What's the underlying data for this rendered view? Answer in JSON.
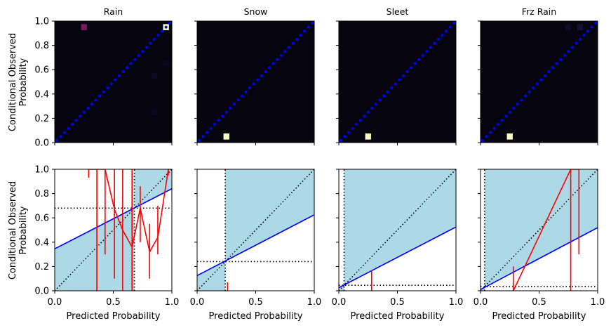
{
  "figure": {
    "xlabel": "Predicted Probability",
    "ylabel_line1": "Conditional Observed",
    "ylabel_line2": "Probability",
    "tick_labels": [
      "0.0",
      "0.2",
      "0.4",
      "0.6",
      "0.8",
      "1.0"
    ],
    "x_tick_labels_bottom": [
      "0.0",
      "0.5",
      "1.0"
    ],
    "colors": {
      "heatmap_background": "#05040f",
      "diagonal_points": "#0000ff",
      "skill_region": "#add8e6",
      "regression_line": "#0000ff",
      "reliability_curve": "#ff0000",
      "reference_lines": "#000000"
    }
  },
  "chart_data": [
    {
      "type": "heatmap",
      "panel": "top",
      "title": "Rain",
      "xlim": [
        0,
        1
      ],
      "ylim": [
        0,
        1
      ],
      "grid_bins": 20,
      "diagonal_points": "x = y",
      "cells": [
        {
          "x": 0.25,
          "y": 0.95,
          "value": 0.45,
          "color": "#7a1a62"
        },
        {
          "x": 0.95,
          "y": 0.95,
          "value": 1.0,
          "color": "#fcfdbf"
        },
        {
          "x": 0.85,
          "y": 0.55,
          "value": 0.03,
          "color": "#0c0a24"
        },
        {
          "x": 0.95,
          "y": 0.65,
          "value": 0.02,
          "color": "#0a081c"
        },
        {
          "x": 0.85,
          "y": 0.25,
          "value": 0.02,
          "color": "#0a081c"
        }
      ]
    },
    {
      "type": "heatmap",
      "panel": "top",
      "title": "Snow",
      "xlim": [
        0,
        1
      ],
      "ylim": [
        0,
        1
      ],
      "grid_bins": 20,
      "diagonal_points": "x = y",
      "cells": [
        {
          "x": 0.25,
          "y": 0.05,
          "value": 1.0,
          "color": "#fcfdbf"
        }
      ]
    },
    {
      "type": "heatmap",
      "panel": "top",
      "title": "Sleet",
      "xlim": [
        0,
        1
      ],
      "ylim": [
        0,
        1
      ],
      "grid_bins": 20,
      "diagonal_points": "x = y",
      "cells": [
        {
          "x": 0.25,
          "y": 0.05,
          "value": 1.0,
          "color": "#fcfdbf"
        }
      ]
    },
    {
      "type": "heatmap",
      "panel": "top",
      "title": "Frz Rain",
      "xlim": [
        0,
        1
      ],
      "ylim": [
        0,
        1
      ],
      "grid_bins": 20,
      "diagonal_points": "x = y",
      "cells": [
        {
          "x": 0.25,
          "y": 0.05,
          "value": 1.0,
          "color": "#fcfdbf"
        },
        {
          "x": 0.85,
          "y": 0.95,
          "value": 0.05,
          "color": "#1a1035"
        },
        {
          "x": 0.75,
          "y": 0.95,
          "value": 0.02,
          "color": "#0f0b26"
        }
      ]
    },
    {
      "type": "line",
      "panel": "bottom",
      "xlabel": "Predicted Probability",
      "xlim": [
        0,
        1
      ],
      "ylim": [
        0,
        1
      ],
      "climatology": 0.68,
      "regression": {
        "intercept": 0.345,
        "slope": 0.495
      },
      "reliability": [
        {
          "x": 0.29,
          "y": 1.0,
          "err": [
            0.93,
            1.0
          ]
        },
        {
          "x": 0.36,
          "y": 1.0,
          "err": [
            0.0,
            1.0
          ]
        },
        {
          "x": 0.43,
          "y": 1.0,
          "err": [
            0.3,
            1.0
          ]
        },
        {
          "x": 0.51,
          "y": 0.67,
          "err": [
            0.1,
            1.0
          ]
        },
        {
          "x": 0.58,
          "y": 0.5,
          "err": [
            0.0,
            1.0
          ]
        },
        {
          "x": 0.66,
          "y": 0.36,
          "err": [
            0.0,
            1.0
          ]
        },
        {
          "x": 0.73,
          "y": 0.68,
          "err": [
            0.4,
            0.86
          ]
        },
        {
          "x": 0.81,
          "y": 0.32,
          "err": [
            0.1,
            0.55
          ]
        },
        {
          "x": 0.88,
          "y": 0.44,
          "err": [
            0.3,
            0.7
          ]
        },
        {
          "x": 0.97,
          "y": 1.0,
          "err": [
            0.95,
            1.0
          ]
        }
      ]
    },
    {
      "type": "line",
      "panel": "bottom",
      "xlabel": "Predicted Probability",
      "xlim": [
        0,
        1
      ],
      "ylim": [
        0,
        1
      ],
      "climatology": 0.24,
      "regression": {
        "intercept": 0.125,
        "slope": 0.5
      },
      "reliability": [
        {
          "x": 0.26,
          "y": 0.0,
          "err": [
            0.0,
            0.07
          ]
        }
      ]
    },
    {
      "type": "line",
      "panel": "bottom",
      "xlabel": "Predicted Probability",
      "xlim": [
        0,
        1
      ],
      "ylim": [
        0,
        1
      ],
      "climatology": 0.045,
      "regression": {
        "intercept": 0.025,
        "slope": 0.5
      },
      "reliability": [
        {
          "x": 0.28,
          "y": 0.0,
          "err": [
            0.0,
            0.17
          ]
        }
      ]
    },
    {
      "type": "line",
      "panel": "bottom",
      "xlabel": "Predicted Probability",
      "xlim": [
        0,
        1
      ],
      "ylim": [
        0,
        1
      ],
      "climatology": 0.035,
      "regression": {
        "intercept": 0.01,
        "slope": 0.51
      },
      "reliability": [
        {
          "x": 0.28,
          "y": 0.0,
          "err": [
            0.0,
            0.2
          ]
        },
        {
          "x": 0.77,
          "y": 1.0,
          "err": [
            0.0,
            1.0
          ]
        },
        {
          "x": 0.84,
          "y": 1.0,
          "err": [
            0.3,
            1.0
          ]
        }
      ]
    }
  ]
}
